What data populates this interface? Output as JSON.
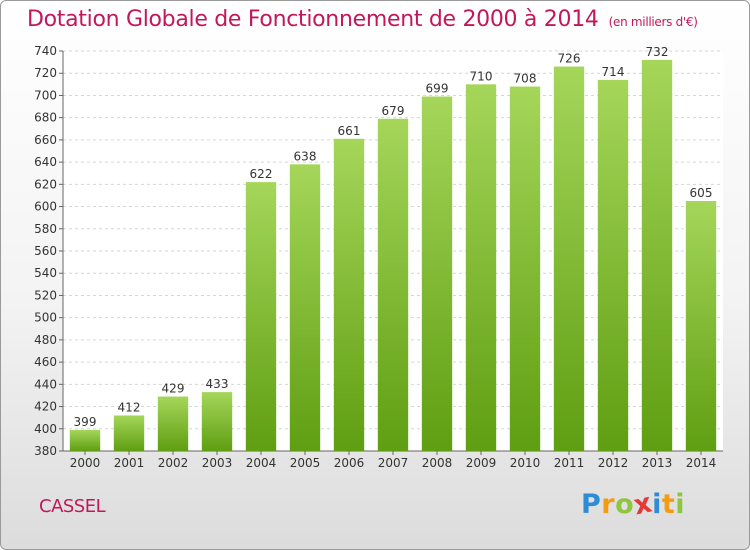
{
  "chart_data": {
    "type": "bar",
    "title": "Dotation Globale de Fonctionnement de 2000 à 2014",
    "subtitle": "(en milliers d'€)",
    "categories": [
      "2000",
      "2001",
      "2002",
      "2003",
      "2004",
      "2005",
      "2006",
      "2007",
      "2008",
      "2009",
      "2010",
      "2011",
      "2012",
      "2013",
      "2014"
    ],
    "values": [
      399,
      412,
      429,
      433,
      622,
      638,
      661,
      679,
      699,
      710,
      708,
      726,
      714,
      732,
      605
    ],
    "ylim": [
      380,
      740
    ],
    "yticks": [
      380,
      400,
      420,
      440,
      460,
      480,
      500,
      520,
      540,
      560,
      580,
      600,
      620,
      640,
      660,
      680,
      700,
      720,
      740
    ],
    "grid": true,
    "bar_color": "#8dc63f"
  },
  "commune": "CASSEL",
  "logo": {
    "letters": [
      {
        "char": "P",
        "color": "#2e8bd6"
      },
      {
        "char": "r",
        "color": "#f39c12"
      },
      {
        "char": "o",
        "color": "#8dc63f"
      },
      {
        "char": "x",
        "color": "#e53935"
      },
      {
        "char": "i",
        "color": "#2e8bd6"
      },
      {
        "char": "t",
        "color": "#f39c12"
      },
      {
        "char": "i",
        "color": "#8dc63f"
      }
    ]
  }
}
